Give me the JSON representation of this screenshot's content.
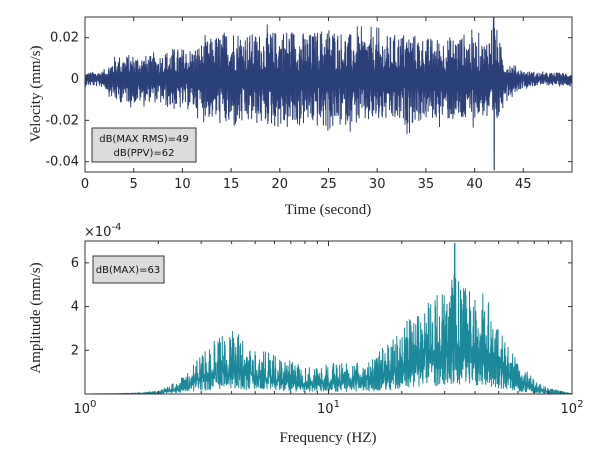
{
  "chart_data": [
    {
      "type": "line",
      "xlabel": "Time (second)",
      "ylabel": "Velocity (mm/s)",
      "xlim": [
        0,
        50
      ],
      "ylim": [
        -0.045,
        0.03
      ],
      "x_ticks": [
        "0",
        "5",
        "10",
        "15",
        "20",
        "25",
        "30",
        "35",
        "40",
        "45"
      ],
      "y_ticks": [
        "0.02",
        "0",
        "-0.02",
        "-0.04"
      ],
      "grid": false,
      "series_color": "#2b3f78",
      "annotations": [
        "dB(MAX RMS)=49",
        "dB(PPV)=62"
      ],
      "series": [
        {
          "x": [
            0,
            2,
            3,
            5,
            7,
            9,
            11,
            13,
            15,
            17,
            19,
            21,
            23,
            25,
            27,
            29,
            31,
            33,
            35,
            37,
            39,
            41,
            42,
            43,
            45,
            47,
            50
          ],
          "y_envelope": [
            0.003,
            0.004,
            0.011,
            0.012,
            0.011,
            0.015,
            0.015,
            0.02,
            0.025,
            0.022,
            0.023,
            0.025,
            0.022,
            0.026,
            0.022,
            0.022,
            0.021,
            0.023,
            0.02,
            0.02,
            0.022,
            0.018,
            0.03,
            0.01,
            0.004,
            0.003,
            0.003
          ],
          "peak_min": -0.044,
          "peak_min_x": 42,
          "peak_max": 0.03,
          "peak_max_x": 42
        }
      ]
    },
    {
      "type": "line",
      "xlabel": "Frequency (HZ)",
      "ylabel": "Amplitude (mm/s)",
      "xscale": "log",
      "xlim": [
        1,
        100
      ],
      "ylim": [
        0,
        0.0007
      ],
      "y_exponent": "-4",
      "x_ticks": [
        {
          "base": "10",
          "exp": "0"
        },
        {
          "base": "10",
          "exp": "1"
        },
        {
          "base": "10",
          "exp": "2"
        }
      ],
      "y_ticks": [
        "2",
        "4",
        "6"
      ],
      "grid": false,
      "series_color": "#1a8a9a",
      "annotations": [
        "dB(MAX)=63"
      ],
      "series": [
        {
          "x": [
            1,
            1.5,
            2,
            2.5,
            3,
            3.5,
            4,
            4.5,
            5,
            6,
            7,
            8,
            10,
            12,
            15,
            18,
            20,
            25,
            30,
            33,
            35,
            40,
            45,
            50,
            60,
            70,
            80,
            100
          ],
          "y_envelope": [
            0.0,
            3e-06,
            1e-05,
            6e-05,
            0.00015,
            0.00021,
            0.00024,
            0.0002,
            0.00017,
            0.00014,
            0.00012,
            0.0001,
            0.00011,
            0.00012,
            0.00013,
            0.0002,
            0.00025,
            0.00035,
            0.0004,
            0.00045,
            0.0004,
            0.0004,
            0.00037,
            0.00025,
            0.00012,
            5e-05,
            2e-05,
            3e-06
          ],
          "peak_max": 0.00069,
          "peak_max_x": 33
        }
      ]
    }
  ]
}
